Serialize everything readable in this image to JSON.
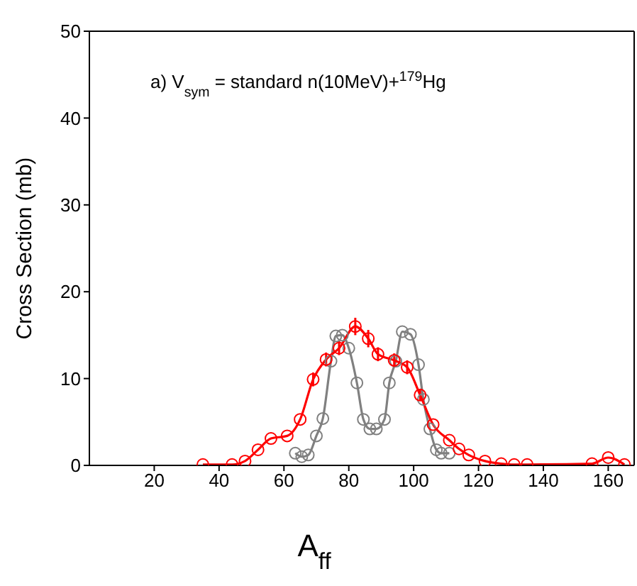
{
  "chart_data": {
    "type": "line",
    "xlabel": "A$_{ff}$",
    "ylabel": "Cross Section (mb)",
    "annotations": [
      "a) V$_{sym}$ = standard  n(10MeV)+$^{179}$Hg"
    ],
    "xlim": [
      0,
      168
    ],
    "xticks": [
      20,
      40,
      60,
      80,
      100,
      120,
      140,
      160
    ],
    "ylim": [
      0,
      50
    ],
    "yticks": [
      0,
      10,
      20,
      30,
      40,
      50
    ],
    "marker": "circle",
    "line_style": "solid",
    "series": [
      {
        "color": "#808080",
        "x": [
          63.5,
          65.5,
          67.5,
          70,
          72,
          74.5,
          76,
          78,
          80,
          82.5,
          84.5,
          86.5,
          88.5,
          91,
          92.5,
          94.5,
          96.5,
          99,
          101.5,
          103,
          105,
          107,
          108.5,
          111
        ],
        "values": [
          1.4,
          1.0,
          1.2,
          3.4,
          5.4,
          12,
          14.9,
          15,
          13.5,
          9.5,
          5.3,
          4.2,
          4.2,
          5.3,
          9.5,
          12,
          15.4,
          15.1,
          11.6,
          7.6,
          4.2,
          1.8,
          1.4,
          1.4
        ]
      },
      {
        "color": "#ff0000",
        "x": [
          35,
          44,
          48,
          52,
          56,
          61,
          65,
          69,
          73,
          77,
          82,
          86,
          89,
          94,
          98,
          102,
          106,
          111,
          114,
          117,
          122,
          127,
          131,
          135,
          155,
          160,
          165
        ],
        "values": [
          0.1,
          0.1,
          0.5,
          1.8,
          3.1,
          3.4,
          5.3,
          9.9,
          12.2,
          13.5,
          16,
          14.6,
          12.8,
          12.1,
          11.3,
          8.1,
          4.7,
          2.9,
          1.9,
          1.2,
          0.5,
          0.2,
          0.1,
          0.1,
          0.2,
          0.9,
          0.1
        ],
        "errors": [
          null,
          null,
          null,
          null,
          null,
          null,
          null,
          0.8,
          0.8,
          0.8,
          1,
          1,
          0.8,
          0.8,
          0.8,
          0.6,
          null,
          null,
          null,
          null,
          null,
          null,
          null,
          null,
          null,
          null,
          null
        ]
      }
    ]
  }
}
